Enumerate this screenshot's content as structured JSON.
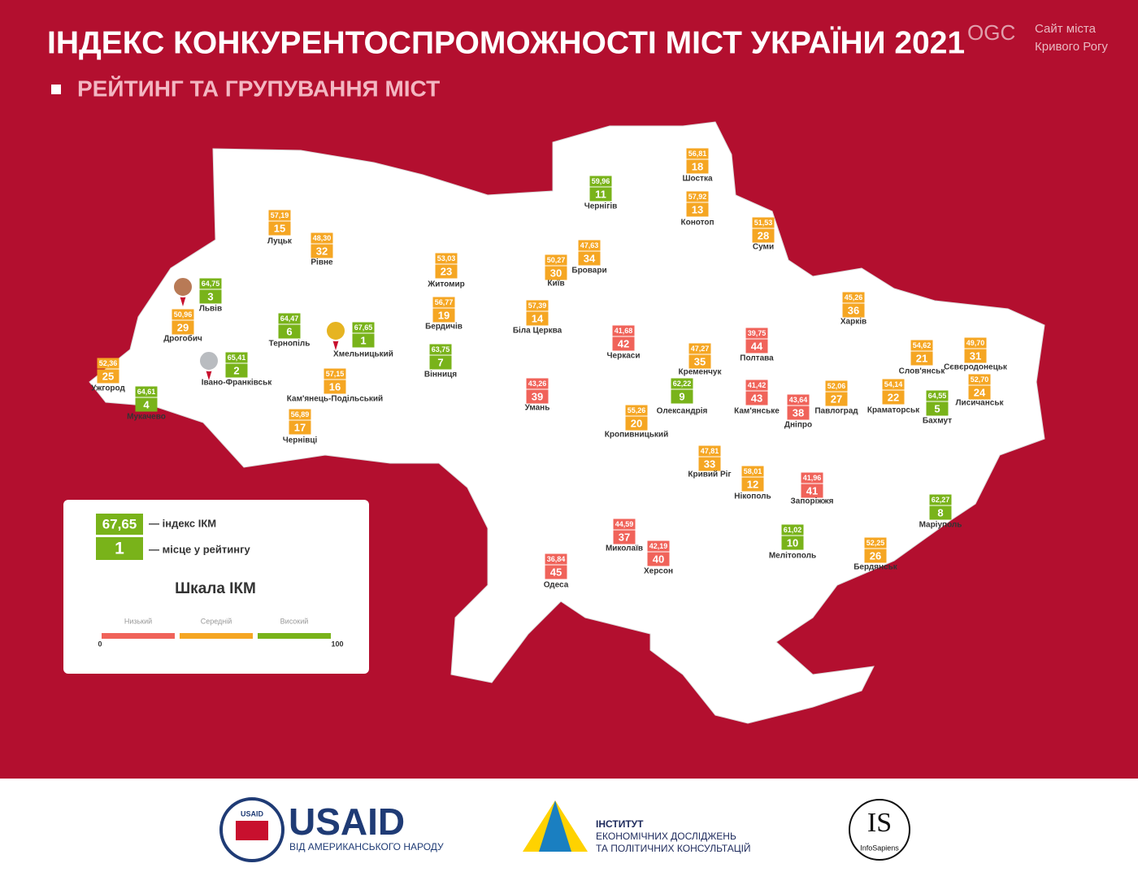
{
  "header": {
    "title": "ІНДЕКС КОНКУРЕНТОСПРОМОЖНОСТІ МІСТ УКРАЇНИ 2021",
    "subtitle": "РЕЙТИНГ ТА ГРУПУВАННЯ МІСТ"
  },
  "watermark": {
    "logo": "OGC",
    "line1": "Сайт міста",
    "line2": "Кривого Рогу"
  },
  "cities": [
    {
      "name": "Хмельницький",
      "index": "67,65",
      "rank": 1,
      "color": "#79b31a"
    },
    {
      "name": "Івано-Франківськ",
      "index": "65,41",
      "rank": 2,
      "color": "#79b31a"
    },
    {
      "name": "Львів",
      "index": "64,75",
      "rank": 3,
      "color": "#79b31a"
    },
    {
      "name": "Мукачево",
      "index": "64,61",
      "rank": 4,
      "color": "#79b31a"
    },
    {
      "name": "Бахмут",
      "index": "64,55",
      "rank": 5,
      "color": "#79b31a"
    },
    {
      "name": "Тернопіль",
      "index": "64,47",
      "rank": 6,
      "color": "#79b31a"
    },
    {
      "name": "Вінниця",
      "index": "63,75",
      "rank": 7,
      "color": "#79b31a"
    },
    {
      "name": "Маріуполь",
      "index": "62,27",
      "rank": 8,
      "color": "#79b31a"
    },
    {
      "name": "Олександрія",
      "index": "62,22",
      "rank": 9,
      "color": "#79b31a"
    },
    {
      "name": "Мелітополь",
      "index": "61,02",
      "rank": 10,
      "color": "#79b31a"
    },
    {
      "name": "Чернігів",
      "index": "59,96",
      "rank": 11,
      "color": "#79b31a"
    },
    {
      "name": "Нікополь",
      "index": "58,01",
      "rank": 12,
      "color": "#f5a623"
    },
    {
      "name": "Конотоп",
      "index": "57,92",
      "rank": 13,
      "color": "#f5a623"
    },
    {
      "name": "Біла Церква",
      "index": "57,39",
      "rank": 14,
      "color": "#f5a623"
    },
    {
      "name": "Луцьк",
      "index": "57,19",
      "rank": 15,
      "color": "#f5a623"
    },
    {
      "name": "Кам'янець-Подільський",
      "index": "57,15",
      "rank": 16,
      "color": "#f5a623"
    },
    {
      "name": "Чернівці",
      "index": "56,89",
      "rank": 17,
      "color": "#f5a623"
    },
    {
      "name": "Шостка",
      "index": "56,81",
      "rank": 18,
      "color": "#f5a623"
    },
    {
      "name": "Бердичів",
      "index": "56,77",
      "rank": 19,
      "color": "#f5a623"
    },
    {
      "name": "Кропивницький",
      "index": "55,26",
      "rank": 20,
      "color": "#f5a623"
    },
    {
      "name": "Слов'янськ",
      "index": "54,62",
      "rank": 21,
      "color": "#f5a623"
    },
    {
      "name": "Краматорськ",
      "index": "54,14",
      "rank": 22,
      "color": "#f5a623"
    },
    {
      "name": "Житомир",
      "index": "53,03",
      "rank": 23,
      "color": "#f5a623"
    },
    {
      "name": "Лисичанськ",
      "index": "52,70",
      "rank": 24,
      "color": "#f5a623"
    },
    {
      "name": "Ужгород",
      "index": "52,36",
      "rank": 25,
      "color": "#f5a623"
    },
    {
      "name": "Бердянськ",
      "index": "52,25",
      "rank": 26,
      "color": "#f5a623"
    },
    {
      "name": "Павлоград",
      "index": "52,06",
      "rank": 27,
      "color": "#f5a623"
    },
    {
      "name": "Суми",
      "index": "51,53",
      "rank": 28,
      "color": "#f5a623"
    },
    {
      "name": "Дрогобич",
      "index": "50,96",
      "rank": 29,
      "color": "#f5a623"
    },
    {
      "name": "Київ",
      "index": "50,27",
      "rank": 30,
      "color": "#f5a623"
    },
    {
      "name": "Сєвєродонецьк",
      "index": "49,70",
      "rank": 31,
      "color": "#f5a623"
    },
    {
      "name": "Рівне",
      "index": "48,30",
      "rank": 32,
      "color": "#f5a623"
    },
    {
      "name": "Кривий Ріг",
      "index": "47,81",
      "rank": 33,
      "color": "#f5a623"
    },
    {
      "name": "Бровари",
      "index": "47,63",
      "rank": 34,
      "color": "#f5a623"
    },
    {
      "name": "Кременчук",
      "index": "47,27",
      "rank": 35,
      "color": "#f5a623"
    },
    {
      "name": "Харків",
      "index": "45,26",
      "rank": 36,
      "color": "#f5a623"
    },
    {
      "name": "Миколаїв",
      "index": "44,59",
      "rank": 37,
      "color": "#f0635a"
    },
    {
      "name": "Дніпро",
      "index": "43,64",
      "rank": 38,
      "color": "#f0635a"
    },
    {
      "name": "Умань",
      "index": "43,26",
      "rank": 39,
      "color": "#f0635a"
    },
    {
      "name": "Херсон",
      "index": "42,19",
      "rank": 40,
      "color": "#f0635a"
    },
    {
      "name": "Запоріжжя",
      "index": "41,96",
      "rank": 41,
      "color": "#f0635a"
    },
    {
      "name": "Черкаси",
      "index": "41,68",
      "rank": 42,
      "color": "#f0635a"
    },
    {
      "name": "Кам'янське",
      "index": "41,42",
      "rank": 43,
      "color": "#f0635a"
    },
    {
      "name": "Полтава",
      "index": "39,75",
      "rank": 44,
      "color": "#f0635a"
    },
    {
      "name": "Одеса",
      "index": "36,84",
      "rank": 45,
      "color": "#f0635a"
    }
  ],
  "legend": {
    "sample_index": "67,65",
    "sample_rank": 1,
    "index_label": "— індекс ІКМ",
    "rank_label": "— місце у рейтингу",
    "scale_title": "Шкала ІКМ",
    "levels": [
      {
        "label": "Низький",
        "color": "#f0635a"
      },
      {
        "label": "Середній",
        "color": "#f5a623"
      },
      {
        "label": "Високий",
        "color": "#79b31a"
      }
    ],
    "scale_min": 0,
    "scale_max": 100
  },
  "footer": {
    "usaid_seal": "USAID",
    "usaid": "USAID",
    "usaid_sub": "ВІД АМЕРИКАНСЬКОГО НАРОДУ",
    "ier_line1": "ІНСТИТУТ",
    "ier_line2": "ЕКОНОМІЧНИХ ДОСЛІДЖЕНЬ",
    "ier_line3": "ТА ПОЛІТИЧНИХ КОНСУЛЬТАЦІЙ",
    "is_logo": "IS",
    "is_name": "InfoSapiens"
  }
}
